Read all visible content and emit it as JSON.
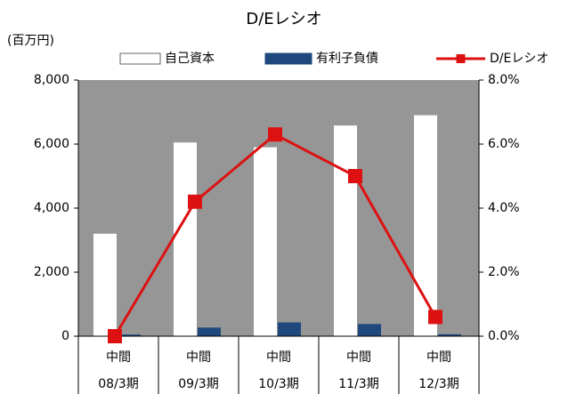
{
  "chart_data": {
    "type": "bar_line",
    "title": "D/Eレシオ",
    "y_label": "(百万円)",
    "categories": [
      [
        "中間",
        "08/3期"
      ],
      [
        "中間",
        "09/3期"
      ],
      [
        "中間",
        "10/3期"
      ],
      [
        "中間",
        "11/3期"
      ],
      [
        "中間",
        "12/3期"
      ]
    ],
    "series": [
      {
        "name": "自己資本",
        "color": "#ffffff",
        "type": "bar",
        "values": [
          3200,
          6050,
          5900,
          6580,
          6900
        ]
      },
      {
        "name": "有利子負債",
        "color": "#1f497d",
        "type": "bar",
        "values": [
          50,
          270,
          430,
          380,
          60
        ]
      },
      {
        "name": "D/Eレシオ",
        "color": "#dd1111",
        "type": "line",
        "axis": "y2",
        "values": [
          0.0,
          4.2,
          6.3,
          5.0,
          0.6
        ]
      }
    ],
    "ylim": [
      0,
      8000
    ],
    "yticks": [
      0,
      {
        "value": 2000,
        "label": "2,000"
      },
      {
        "value": 4000,
        "label": "4,000"
      },
      {
        "value": 6000,
        "label": "6,000"
      },
      {
        "value": 8000,
        "label": "8,000"
      }
    ],
    "y2lim": [
      0,
      8
    ],
    "y2ticks": [
      {
        "value": 0,
        "label": "0.0%"
      },
      {
        "value": 2,
        "label": "2.0%"
      },
      {
        "value": 4,
        "label": "4.0%"
      },
      {
        "value": 6,
        "label": "6.0%"
      },
      {
        "value": 8,
        "label": "8.0%"
      }
    ],
    "plot_background": "#969696"
  }
}
